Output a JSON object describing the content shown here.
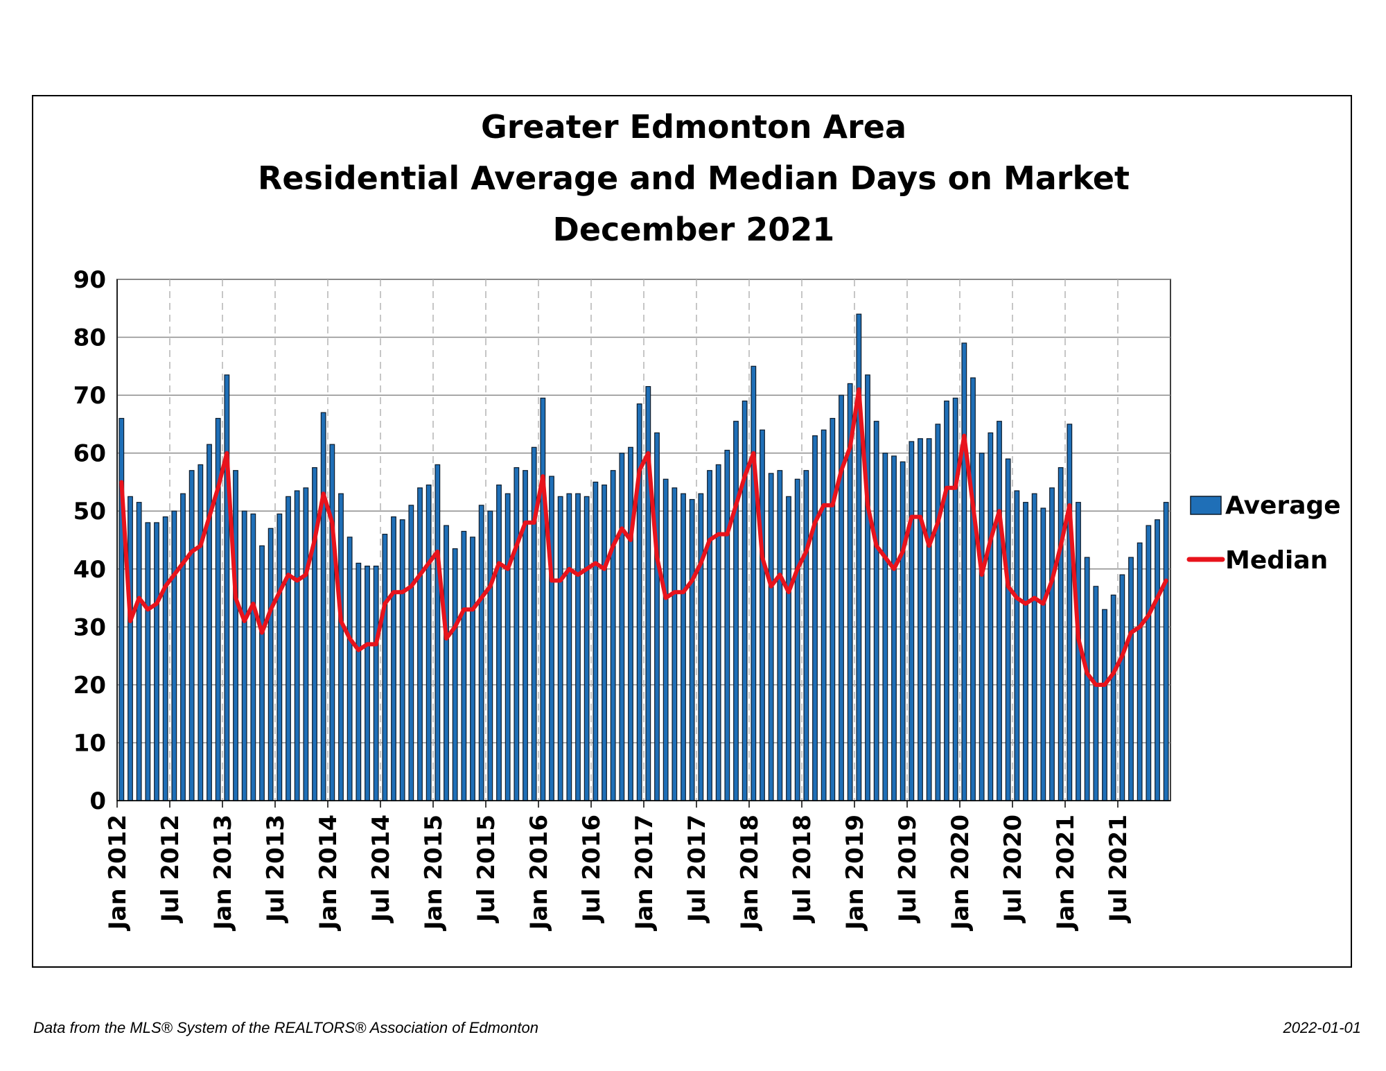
{
  "chart_data": {
    "type": "bar",
    "title": [
      "Greater Edmonton Area",
      "Residential Average and Median Days on Market",
      "December 2021"
    ],
    "ylim": [
      0,
      90
    ],
    "yticks": [
      0,
      10,
      20,
      30,
      40,
      50,
      60,
      70,
      80,
      90
    ],
    "x_tick_labels": [
      "Jan 2012",
      "Jul 2012",
      "Jan 2013",
      "Jul 2013",
      "Jan 2014",
      "Jul 2014",
      "Jan 2015",
      "Jul 2015",
      "Jan 2016",
      "Jul 2016",
      "Jan 2017",
      "Jul 2017",
      "Jan 2018",
      "Jul 2018",
      "Jan 2019",
      "Jul 2019",
      "Jan 2020",
      "Jul 2020",
      "Jan 2021",
      "Jul 2021"
    ],
    "x_tick_every_months": 6,
    "grid": true,
    "legend_position": "right",
    "series": [
      {
        "name": "Average",
        "type": "bar",
        "color": "#1f6fb7",
        "values": [
          66,
          52.5,
          51.5,
          48,
          48,
          49,
          50,
          53,
          57,
          58,
          61.5,
          66,
          73.5,
          57,
          50,
          49.5,
          44,
          47,
          49.5,
          52.5,
          53.5,
          54,
          57.5,
          67,
          61.5,
          53,
          45.5,
          41,
          40.5,
          40.5,
          46,
          49,
          48.5,
          51,
          54,
          54.5,
          58,
          47.5,
          43.5,
          46.5,
          45.5,
          51,
          50,
          54.5,
          53,
          57.5,
          57,
          61,
          69.5,
          56,
          52.5,
          53,
          53,
          52.5,
          55,
          54.5,
          57,
          60,
          61,
          68.5,
          71.5,
          63.5,
          55.5,
          54,
          53,
          52,
          53,
          57,
          58,
          60.5,
          65.5,
          69,
          75,
          64,
          56.5,
          57,
          52.5,
          55.5,
          57,
          63,
          64,
          66,
          70,
          72,
          84,
          73.5,
          65.5,
          60,
          59.5,
          58.5,
          62,
          62.5,
          62.5,
          65,
          69,
          69.5,
          79,
          73,
          60,
          63.5,
          65.5,
          59,
          53.5,
          51.5,
          53,
          50.5,
          54,
          57.5,
          65,
          51.5,
          42,
          37,
          33,
          35.5,
          39,
          42,
          44.5,
          47.5,
          48.5,
          51.5
        ]
      },
      {
        "name": "Median",
        "type": "line",
        "color": "#e8131c",
        "values": [
          55,
          31,
          35,
          33,
          34,
          37,
          39,
          41,
          43,
          44,
          49,
          54,
          60,
          35,
          31,
          34,
          29,
          33,
          36,
          39,
          38,
          39,
          45,
          53,
          48,
          31,
          28,
          26,
          27,
          27,
          34,
          36,
          36,
          37,
          39,
          41,
          43,
          28,
          30,
          33,
          33,
          35,
          37,
          41,
          40,
          44,
          48,
          48,
          56,
          38,
          38,
          40,
          39,
          40,
          41,
          40,
          44,
          47,
          45,
          57,
          60,
          42,
          35,
          36,
          36,
          38,
          41,
          45,
          46,
          46,
          51,
          56,
          60,
          42,
          37,
          39,
          36,
          40,
          43,
          48,
          51,
          51,
          57,
          61,
          71,
          51,
          44,
          42,
          40,
          43,
          49,
          49,
          44,
          48,
          54,
          54,
          63,
          51,
          39,
          45,
          50,
          37,
          35,
          34,
          35,
          34,
          38,
          44,
          51,
          28,
          22,
          20,
          20,
          22,
          25,
          29,
          30,
          32,
          35,
          38
        ]
      }
    ]
  },
  "footer": {
    "source": "Data from the MLS® System of the REALTORS® Association of Edmonton",
    "date": "2022-01-01"
  }
}
